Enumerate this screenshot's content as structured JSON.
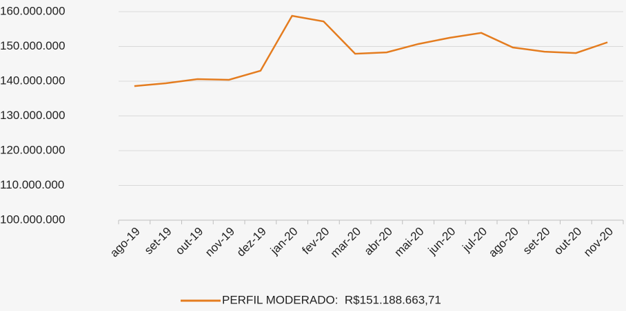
{
  "chart_data": {
    "type": "line",
    "categories": [
      "ago-19",
      "set-19",
      "out-19",
      "nov-19",
      "dez-19",
      "jan-20",
      "fev-20",
      "mar-20",
      "abr-20",
      "mai-20",
      "jun-20",
      "jul-20",
      "ago-20",
      "set-20",
      "out-20",
      "nov-20"
    ],
    "series": [
      {
        "name": "PERFIL MODERADO:  R$151.188.663,71",
        "color": "#e47c1f",
        "values": [
          138600000,
          139400000,
          140600000,
          140400000,
          143000000,
          158800000,
          157200000,
          147900000,
          148300000,
          150700000,
          152500000,
          153900000,
          149700000,
          148500000,
          148100000,
          151188663.71
        ]
      }
    ],
    "ylim": [
      100000000,
      160000000
    ],
    "yticks": [
      {
        "value": 100000000,
        "label": "100.000.000"
      },
      {
        "value": 110000000,
        "label": "110.000.000"
      },
      {
        "value": 120000000,
        "label": "120.000.000"
      },
      {
        "value": 130000000,
        "label": "130.000.000"
      },
      {
        "value": 140000000,
        "label": "140.000.000"
      },
      {
        "value": 150000000,
        "label": "150.000.000"
      },
      {
        "value": 160000000,
        "label": "160.000.000"
      }
    ],
    "grid": true,
    "legend": "bottom"
  }
}
